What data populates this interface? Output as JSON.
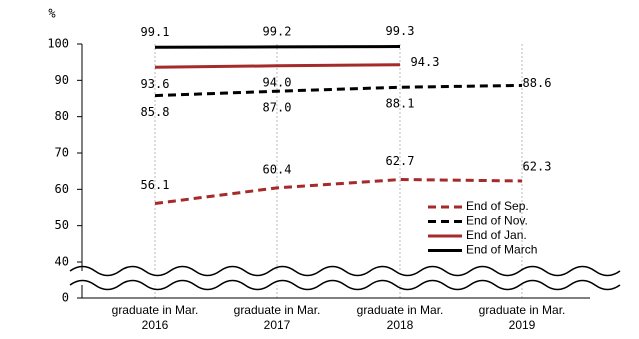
{
  "chart_data": {
    "type": "line",
    "y_label": "%",
    "categories": [
      [
        "graduate in Mar.",
        "2016"
      ],
      [
        "graduate in Mar.",
        "2017"
      ],
      [
        "graduate in Mar.",
        "2018"
      ],
      [
        "graduate in Mar.",
        "2019"
      ]
    ],
    "series": [
      {
        "name": "End of Sep.",
        "color": "#a52a2a",
        "dashed": true,
        "values": [
          56.1,
          60.4,
          62.7,
          62.3
        ],
        "value_labels": [
          "56.1",
          "60.4",
          "62.7",
          "62.3"
        ]
      },
      {
        "name": "End of Nov.",
        "color": "#000000",
        "dashed": true,
        "values": [
          85.8,
          87.0,
          88.1,
          88.6
        ],
        "value_labels": [
          "85.8",
          "87.0",
          "88.1",
          "88.6"
        ]
      },
      {
        "name": "End of Jan.",
        "color": "#a52a2a",
        "dashed": false,
        "values": [
          93.6,
          94.0,
          94.3,
          null
        ],
        "value_labels": [
          "93.6",
          "94.0",
          "94.3",
          null
        ]
      },
      {
        "name": "End of March",
        "color": "#000000",
        "dashed": false,
        "values": [
          99.1,
          99.2,
          99.3,
          null
        ],
        "value_labels": [
          "99.1",
          "99.2",
          "99.3",
          null
        ]
      }
    ],
    "ylim": [
      0,
      100
    ],
    "axis_break": [
      0,
      40
    ],
    "yticks": [
      0,
      40,
      50,
      60,
      70,
      80,
      90,
      100
    ],
    "legend": "lower right"
  }
}
